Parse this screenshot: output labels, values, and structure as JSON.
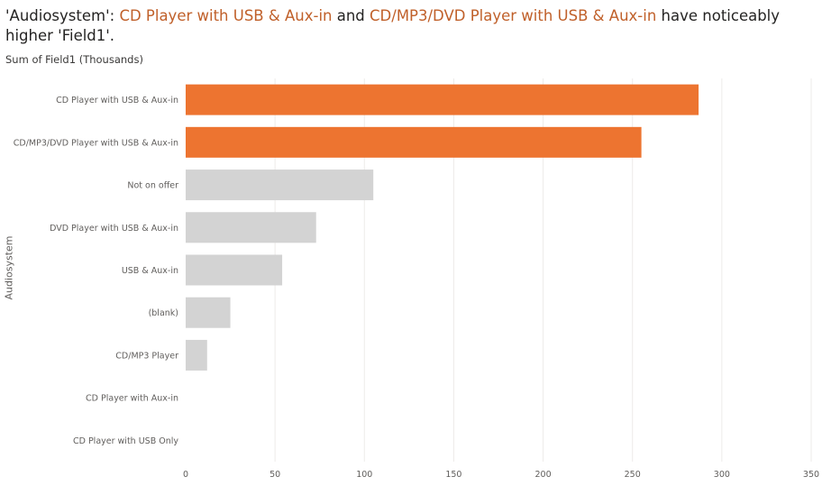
{
  "title": {
    "prefix": "'Audiosystem': ",
    "highlight1": "CD Player with USB & Aux-in",
    "middle": " and ",
    "highlight2": "CD/MP3/DVD Player with USB & Aux-in",
    "suffix": " have noticeably higher 'Field1'."
  },
  "chart_data": {
    "type": "bar",
    "orientation": "horizontal",
    "title": "'Audiosystem': CD Player with USB & Aux-in and CD/MP3/DVD Player with USB & Aux-in have noticeably higher 'Field1'.",
    "subtitle": "Sum of Field1 (Thousands)",
    "ylabel": "Audiosystem",
    "xlabel": "",
    "categories": [
      "CD Player with USB & Aux-in",
      "CD/MP3/DVD Player with USB & Aux-in",
      "Not on offer",
      "DVD Player with USB & Aux-in",
      "USB & Aux-in",
      "(blank)",
      "CD/MP3 Player",
      "CD Player with Aux-in",
      "CD Player with USB Only"
    ],
    "values": [
      287,
      255,
      105,
      73,
      54,
      25,
      12,
      0,
      0
    ],
    "highlighted": [
      true,
      true,
      false,
      false,
      false,
      false,
      false,
      false,
      false
    ],
    "xlim": [
      0,
      350
    ],
    "xticks": [
      0,
      50,
      100,
      150,
      200,
      250,
      300,
      350
    ],
    "grid": true,
    "colors": {
      "highlight": "#ED7430",
      "default": "#D3D3D3",
      "title_highlight": "#C0602A",
      "grid": "#EDEBE9"
    }
  }
}
